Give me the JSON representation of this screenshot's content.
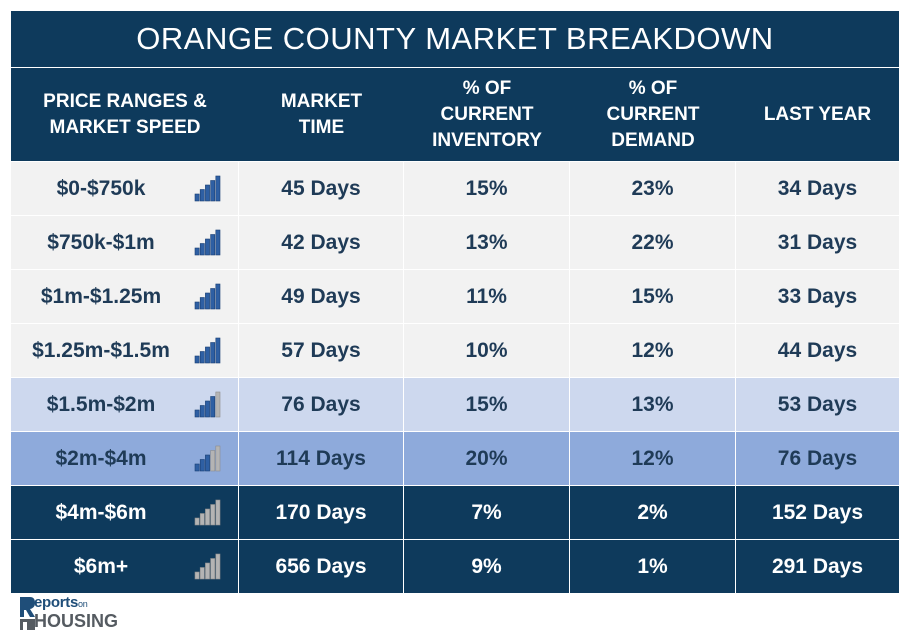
{
  "title": "ORANGE COUNTY MARKET BREAKDOWN",
  "headers": [
    "PRICE RANGES &\nMARKET SPEED",
    "MARKET\nTIME",
    "% OF\nCURRENT\nINVENTORY",
    "% OF\nCURRENT\nDEMAND",
    "LAST YEAR"
  ],
  "rows": [
    {
      "range": "$0-$750k",
      "market_time": "45 Days",
      "inventory": "15%",
      "demand": "23%",
      "last_year": "34 Days",
      "speed_icon": "signal-bars-icon",
      "bars_filled": 5
    },
    {
      "range": "$750k-$1m",
      "market_time": "42 Days",
      "inventory": "13%",
      "demand": "22%",
      "last_year": "31 Days",
      "speed_icon": "signal-bars-icon",
      "bars_filled": 5
    },
    {
      "range": "$1m-$1.25m",
      "market_time": "49 Days",
      "inventory": "11%",
      "demand": "15%",
      "last_year": "33 Days",
      "speed_icon": "signal-bars-icon",
      "bars_filled": 5
    },
    {
      "range": "$1.25m-$1.5m",
      "market_time": "57 Days",
      "inventory": "10%",
      "demand": "12%",
      "last_year": "44 Days",
      "speed_icon": "signal-bars-icon",
      "bars_filled": 5
    },
    {
      "range": "$1.5m-$2m",
      "market_time": "76 Days",
      "inventory": "15%",
      "demand": "13%",
      "last_year": "53 Days",
      "speed_icon": "signal-bars-icon",
      "bars_filled": 4
    },
    {
      "range": "$2m-$4m",
      "market_time": "114 Days",
      "inventory": "20%",
      "demand": "12%",
      "last_year": "76 Days",
      "speed_icon": "signal-bars-icon",
      "bars_filled": 3
    },
    {
      "range": "$4m-$6m",
      "market_time": "170 Days",
      "inventory": "7%",
      "demand": "2%",
      "last_year": "152 Days",
      "speed_icon": "signal-bars-icon",
      "bars_filled": 0
    },
    {
      "range": "$6m+",
      "market_time": "656 Days",
      "inventory": "9%",
      "demand": "1%",
      "last_year": "291 Days",
      "speed_icon": "signal-bars-icon",
      "bars_filled": 0
    }
  ],
  "row_styles": [
    {
      "bg": "#f2f2f2",
      "fg": "#1f3b57"
    },
    {
      "bg": "#f2f2f2",
      "fg": "#1f3b57"
    },
    {
      "bg": "#f2f2f2",
      "fg": "#1f3b57"
    },
    {
      "bg": "#f2f2f2",
      "fg": "#1f3b57"
    },
    {
      "bg": "#cdd8ee",
      "fg": "#1f3b57"
    },
    {
      "bg": "#8eaadb",
      "fg": "#1f3b57"
    },
    {
      "bg": "#0e3a5c",
      "fg": "#ffffff"
    },
    {
      "bg": "#0e3a5c",
      "fg": "#ffffff"
    }
  ],
  "colors": {
    "header_bg": "#0e3a5c",
    "bar_filled": "#2e5fa3",
    "bar_empty": "#b4b4b4"
  },
  "logo": {
    "line1": "eports",
    "line1_small": "on",
    "line2": "HOUSING"
  }
}
